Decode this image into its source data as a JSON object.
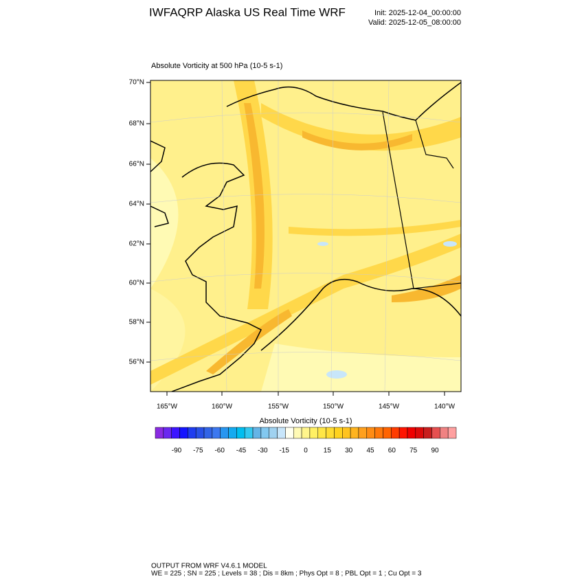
{
  "header": {
    "title": "IWFAQRP Alaska US Real Time WRF",
    "init": "Init: 2025-12-04_00:00:00",
    "valid": "Valid: 2025-12-05_08:00:00"
  },
  "map": {
    "subtitle": "Absolute Vorticity at 500 hPa   (10-5 s-1)",
    "lat_labels": [
      "70°N",
      "68°N",
      "66°N",
      "64°N",
      "62°N",
      "60°N",
      "58°N",
      "56°N"
    ],
    "lon_labels": [
      "165°W",
      "160°W",
      "155°W",
      "150°W",
      "145°W",
      "140°W"
    ]
  },
  "colorbar": {
    "title": "Absolute Vorticity  (10-5 s-1)",
    "labels": [
      -90,
      -75,
      -60,
      -45,
      -30,
      -15,
      0,
      15,
      30,
      45,
      60,
      75,
      90
    ],
    "colors": [
      "#8a2be2",
      "#6a28f0",
      "#3c14ff",
      "#1414ff",
      "#1e3cf0",
      "#2850e6",
      "#3264e6",
      "#3c78f0",
      "#2896f0",
      "#14aaf0",
      "#00bef0",
      "#32c8f0",
      "#64b4e6",
      "#82c8f0",
      "#a0d2f0",
      "#c8e6fa",
      "#fffff0",
      "#fffab4",
      "#fff58c",
      "#fff064",
      "#ffe646",
      "#ffdc32",
      "#ffd21e",
      "#ffc31e",
      "#ffb41e",
      "#ffa01e",
      "#ff8c14",
      "#ff780a",
      "#ff6400",
      "#ff3c00",
      "#ff1400",
      "#f00000",
      "#dc0a0a",
      "#c81e1e",
      "#e65050",
      "#f08282",
      "#ffa0a0"
    ]
  },
  "footer": {
    "line1": "OUTPUT FROM WRF V4.6.1 MODEL",
    "line2": "WE = 225 ; SN = 225 ; Levels = 38 ; Dis = 8km ; Phys Opt = 8 ; PBL Opt = 1 ; Cu Opt = 3"
  }
}
